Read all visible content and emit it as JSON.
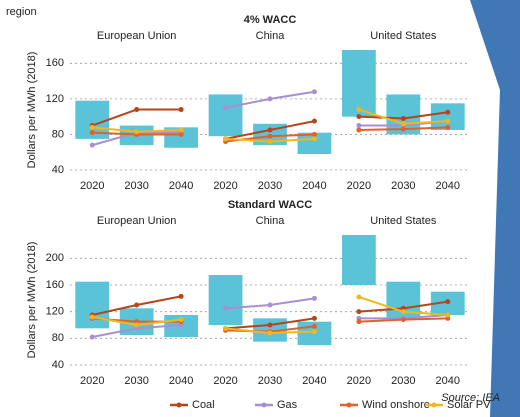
{
  "header": {
    "subtitle": "region"
  },
  "legend": [
    {
      "name": "Coal",
      "color": "#b5451b"
    },
    {
      "name": "Gas",
      "color": "#a88fd0"
    },
    {
      "name": "Wind onshore",
      "color": "#e0622a"
    },
    {
      "name": "Solar PV",
      "color": "#f2b71e"
    }
  ],
  "box_color": "#5bc3d8",
  "source": "Source: IEA",
  "chart_data": [
    {
      "type": "line",
      "title": "4% WACC",
      "ylabel": "Dollars per MWh (2018)",
      "ylim": [
        40,
        175
      ],
      "yticks": [
        40,
        80,
        120,
        160
      ],
      "grid": true,
      "categories": [
        "2020",
        "2030",
        "2040"
      ],
      "panels": [
        {
          "name": "European Union",
          "low": [
            75,
            68,
            65
          ],
          "high": [
            118,
            90,
            88
          ],
          "series": [
            [
              90,
              108,
              108
            ],
            [
              68,
              82,
              82
            ],
            [
              82,
              80,
              80
            ],
            [
              88,
              83,
              85
            ]
          ]
        },
        {
          "name": "China",
          "low": [
            78,
            68,
            58
          ],
          "high": [
            125,
            92,
            82
          ],
          "series": [
            [
              75,
              85,
              95
            ],
            [
              110,
              120,
              128
            ],
            [
              72,
              78,
              80
            ],
            [
              75,
              72,
              75
            ]
          ]
        },
        {
          "name": "United States",
          "low": [
            100,
            80,
            85
          ],
          "high": [
            175,
            125,
            115
          ],
          "series": [
            [
              100,
              98,
              105
            ],
            [
              90,
              90,
              95
            ],
            [
              85,
              86,
              88
            ],
            [
              108,
              92,
              95
            ]
          ]
        }
      ]
    },
    {
      "type": "line",
      "title": "Standard WACC",
      "ylabel": "Dollars per MWh (2018)",
      "ylim": [
        40,
        235
      ],
      "yticks": [
        40,
        80,
        120,
        160,
        200
      ],
      "grid": true,
      "categories": [
        "2020",
        "2030",
        "2040"
      ],
      "panels": [
        {
          "name": "European Union",
          "low": [
            95,
            85,
            82
          ],
          "high": [
            165,
            125,
            115
          ],
          "series": [
            [
              115,
              130,
              143
            ],
            [
              82,
              95,
              100
            ],
            [
              110,
              105,
              105
            ],
            [
              112,
              100,
              108
            ]
          ]
        },
        {
          "name": "China",
          "low": [
            100,
            75,
            70
          ],
          "high": [
            175,
            110,
            105
          ],
          "series": [
            [
              95,
              100,
              110
            ],
            [
              125,
              130,
              140
            ],
            [
              92,
              90,
              98
            ],
            [
              95,
              88,
              90
            ]
          ]
        },
        {
          "name": "United States",
          "low": [
            160,
            110,
            115
          ],
          "high": [
            235,
            165,
            150
          ],
          "series": [
            [
              120,
              125,
              135
            ],
            [
              110,
              110,
              115
            ],
            [
              105,
              108,
              110
            ],
            [
              142,
              120,
              115
            ]
          ]
        }
      ]
    }
  ]
}
